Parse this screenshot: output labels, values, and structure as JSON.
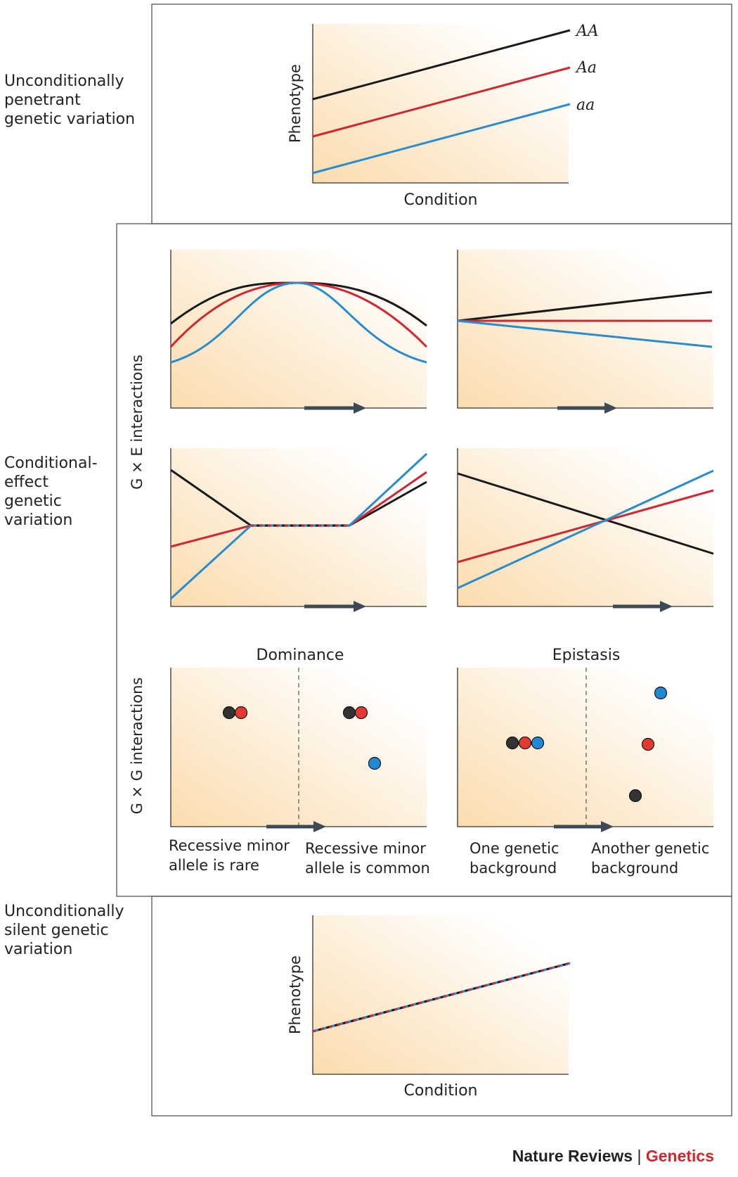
{
  "colors": {
    "AA": "#1a1a1a",
    "Aa": "#d22630",
    "aa": "#2a8ccc",
    "gradient": "#fbdcae",
    "frame": "#555555"
  },
  "rows": {
    "unconditional_penetrant": [
      "Unconditionally",
      "penetrant",
      "genetic variation"
    ],
    "conditional_effect": [
      "Conditional-",
      "effect",
      "genetic",
      "variation"
    ],
    "unconditional_silent": [
      "Unconditionally",
      "silent genetic",
      "variation"
    ]
  },
  "side_labels": {
    "gxe": "G × E interactions",
    "gxg": "G × G interactions"
  },
  "top_panel": {
    "ylabel": "Phenotype",
    "xlabel": "Condition",
    "genotypes": [
      "AA",
      "Aa",
      "aa"
    ]
  },
  "gxg": {
    "dominance": {
      "title": "Dominance",
      "left": [
        "Recessive minor",
        "allele is rare"
      ],
      "right": [
        "Recessive minor",
        "allele is common"
      ]
    },
    "epistasis": {
      "title": "Epistasis",
      "left": [
        "One genetic",
        "background"
      ],
      "right": [
        "Another genetic",
        "background"
      ]
    }
  },
  "bottom_panel": {
    "ylabel": "Phenotype",
    "xlabel": "Condition"
  },
  "footer": {
    "journal": "Nature Reviews",
    "separator": "|",
    "subject": "Genetics"
  },
  "icons": {
    "arrow": "right-arrow-icon"
  }
}
